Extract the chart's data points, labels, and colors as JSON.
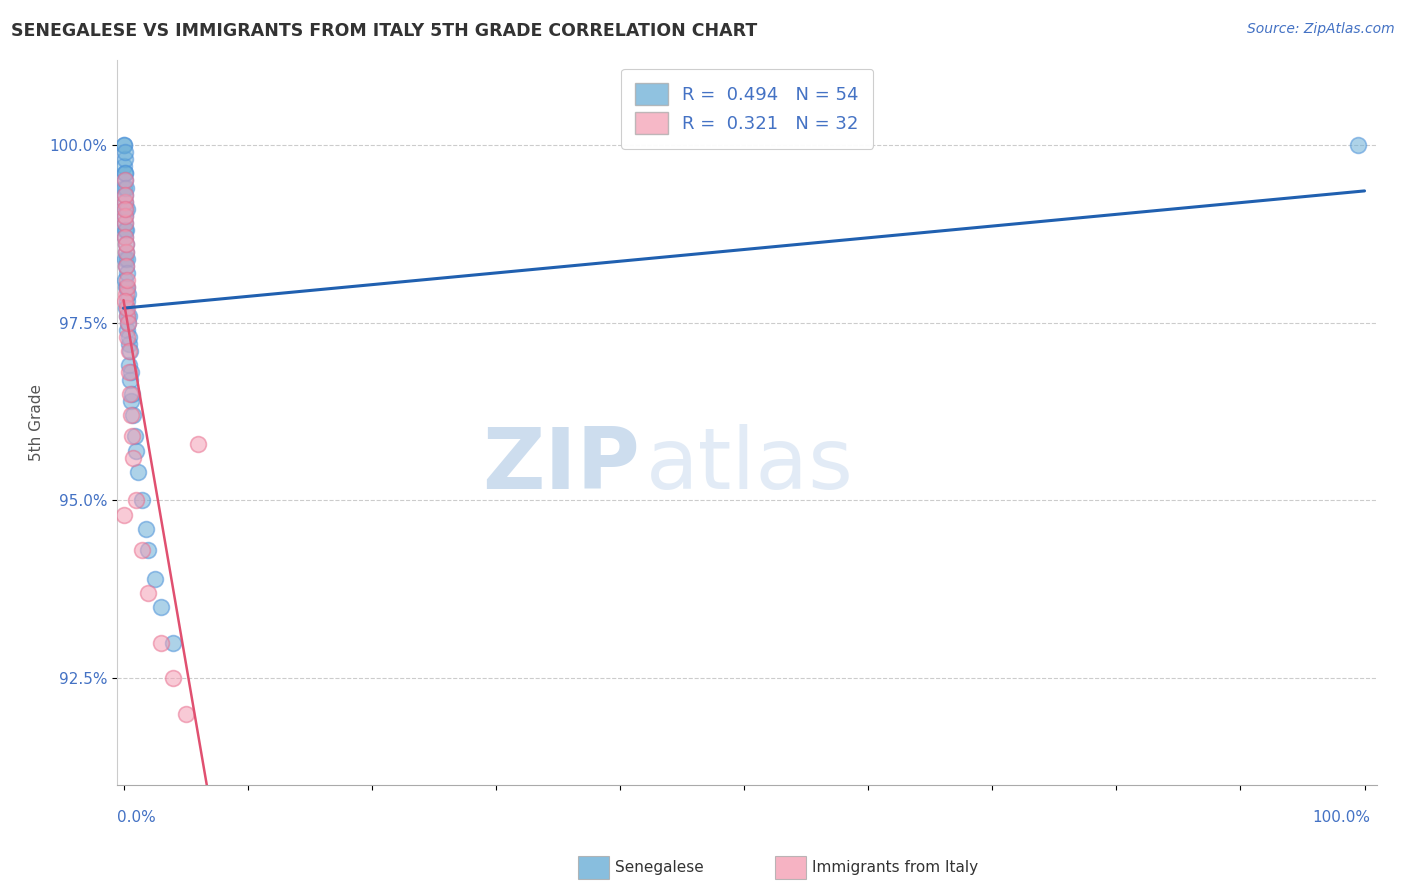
{
  "title": "SENEGALESE VS IMMIGRANTS FROM ITALY 5TH GRADE CORRELATION CHART",
  "source": "Source: ZipAtlas.com",
  "ylabel": "5th Grade",
  "ylim": [
    91.0,
    101.2
  ],
  "xlim": [
    -0.5,
    101.0
  ],
  "yticks": [
    92.5,
    95.0,
    97.5,
    100.0
  ],
  "blue_R": 0.494,
  "blue_N": 54,
  "pink_R": 0.321,
  "pink_N": 32,
  "blue_color": "#6baed6",
  "pink_color": "#f4a0b5",
  "blue_edge_color": "#4a90d9",
  "pink_edge_color": "#e87090",
  "blue_line_color": "#2060b0",
  "pink_line_color": "#e05070",
  "blue_x": [
    0.05,
    0.05,
    0.05,
    0.08,
    0.08,
    0.1,
    0.1,
    0.1,
    0.1,
    0.12,
    0.12,
    0.15,
    0.15,
    0.15,
    0.15,
    0.18,
    0.18,
    0.2,
    0.2,
    0.2,
    0.2,
    0.25,
    0.25,
    0.25,
    0.3,
    0.3,
    0.3,
    0.35,
    0.35,
    0.4,
    0.4,
    0.45,
    0.45,
    0.5,
    0.5,
    0.6,
    0.6,
    0.7,
    0.8,
    0.9,
    1.0,
    1.2,
    1.5,
    1.8,
    2.0,
    2.5,
    3.0,
    4.0,
    0.05,
    0.1,
    0.15,
    0.2,
    0.3,
    99.5
  ],
  "blue_y": [
    100.0,
    99.7,
    99.4,
    99.6,
    99.2,
    99.8,
    99.5,
    99.1,
    98.8,
    99.3,
    98.9,
    99.0,
    98.7,
    98.4,
    98.1,
    98.8,
    98.5,
    98.6,
    98.3,
    98.0,
    97.7,
    98.4,
    98.0,
    97.6,
    98.2,
    97.8,
    97.4,
    97.9,
    97.5,
    97.6,
    97.2,
    97.3,
    96.9,
    97.1,
    96.7,
    96.8,
    96.4,
    96.5,
    96.2,
    95.9,
    95.7,
    95.4,
    95.0,
    94.6,
    94.3,
    93.9,
    93.5,
    93.0,
    100.0,
    99.9,
    99.6,
    99.4,
    99.1,
    100.0
  ],
  "pink_x": [
    0.08,
    0.1,
    0.12,
    0.15,
    0.18,
    0.2,
    0.2,
    0.25,
    0.25,
    0.3,
    0.3,
    0.35,
    0.4,
    0.45,
    0.5,
    0.6,
    0.7,
    0.8,
    1.0,
    1.5,
    2.0,
    3.0,
    4.0,
    5.0,
    6.0,
    0.08,
    0.15,
    0.2,
    0.3,
    0.12,
    0.05,
    0.15
  ],
  "pink_y": [
    99.5,
    99.2,
    98.9,
    98.7,
    98.5,
    98.3,
    97.9,
    98.0,
    97.6,
    97.7,
    97.3,
    97.5,
    97.1,
    96.8,
    96.5,
    96.2,
    95.9,
    95.6,
    95.0,
    94.3,
    93.7,
    93.0,
    92.5,
    92.0,
    95.8,
    99.3,
    99.0,
    98.6,
    98.1,
    99.1,
    94.8,
    97.8
  ],
  "watermark_zip": "ZIP",
  "watermark_atlas": "atlas",
  "background_color": "#ffffff",
  "grid_color": "#cccccc"
}
